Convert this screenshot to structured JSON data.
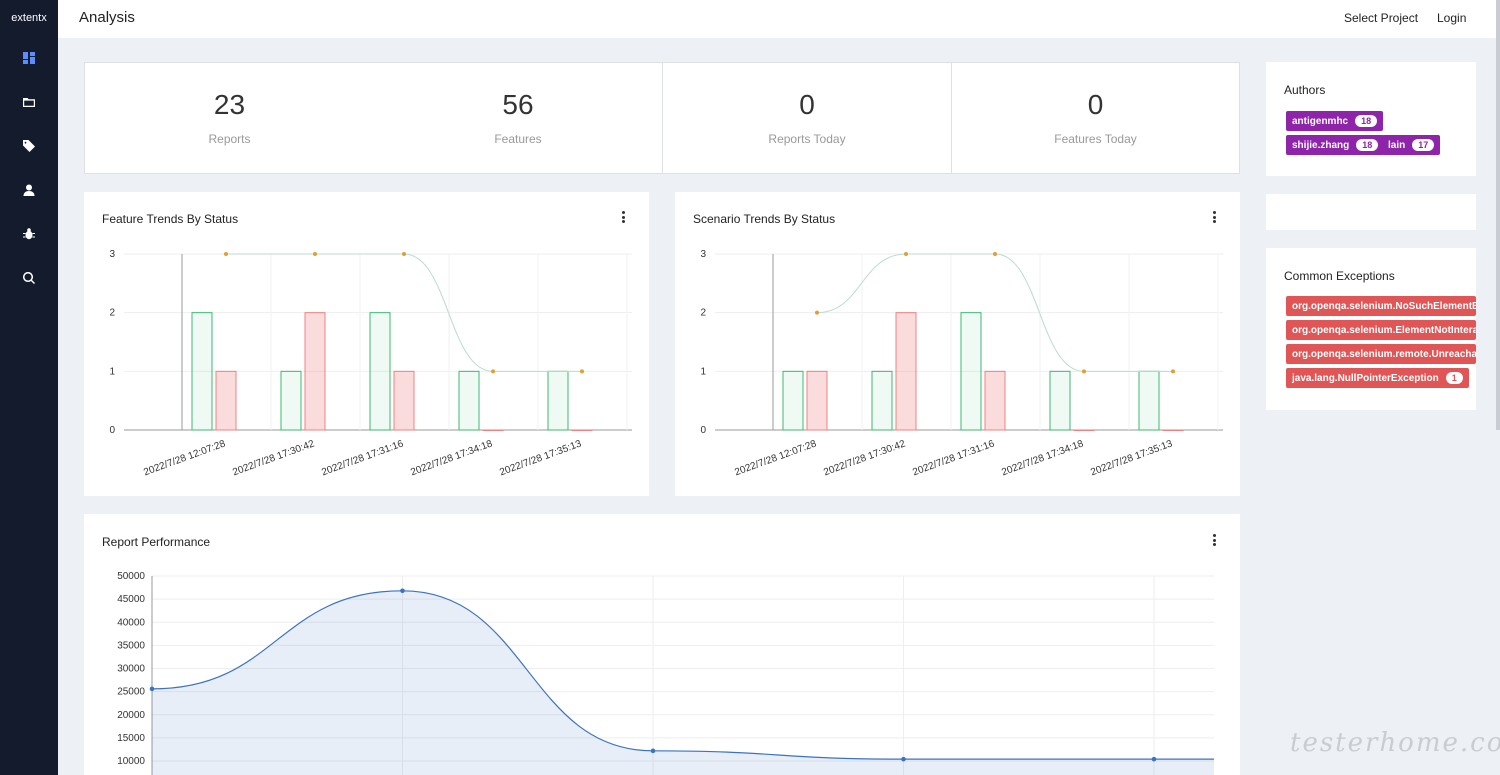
{
  "brand": "extentx",
  "header": {
    "title": "Analysis",
    "select_project": "Select Project",
    "login": "Login"
  },
  "sidebar": {
    "items": [
      {
        "icon": "dashboard-icon",
        "active": true
      },
      {
        "icon": "folder-icon",
        "active": false
      },
      {
        "icon": "tag-icon",
        "active": false
      },
      {
        "icon": "user-icon",
        "active": false
      },
      {
        "icon": "bug-icon",
        "active": false
      },
      {
        "icon": "search-icon",
        "active": false
      }
    ]
  },
  "stats": [
    {
      "value": "23",
      "label": "Reports"
    },
    {
      "value": "56",
      "label": "Features"
    },
    {
      "value": "0",
      "label": "Reports Today"
    },
    {
      "value": "0",
      "label": "Features Today"
    }
  ],
  "authors": {
    "title": "Authors",
    "items": [
      {
        "name": "antigenmhc",
        "count": "18"
      },
      {
        "name": "shijie.zhang",
        "count": "18"
      },
      {
        "name": "lain",
        "count": "17"
      }
    ]
  },
  "exceptions": {
    "title": "Common Exceptions",
    "items": [
      {
        "name": "org.openqa.selenium.NoSuchElementExcepti",
        "count": ""
      },
      {
        "name": "org.openqa.selenium.ElementNotInteractable",
        "count": ""
      },
      {
        "name": "org.openqa.selenium.remote.UnreachableBro",
        "count": ""
      },
      {
        "name": "java.lang.NullPointerException",
        "count": "1"
      }
    ]
  },
  "colors": {
    "pass": "#3cba72",
    "fail": "#f08080",
    "line": "#e0a030",
    "perf": "#3b73c2",
    "sidebar": "#141b2d",
    "author_badge": "#8e24aa",
    "exception_badge": "#e05555"
  },
  "chart_data": [
    {
      "type": "bar",
      "title": "Feature Trends By Status",
      "categories": [
        "2022/7/28 12:07:28",
        "2022/7/28 17:30:42",
        "2022/7/28 17:31:16",
        "2022/7/28 17:34:18",
        "2022/7/28 17:35:13"
      ],
      "series": [
        {
          "values": [
            2,
            1,
            2,
            1,
            1
          ],
          "kind": "bar",
          "color": "#3cba72"
        },
        {
          "values": [
            1,
            2,
            1,
            0,
            0
          ],
          "kind": "bar",
          "color": "#f08080"
        },
        {
          "values": [
            3,
            3,
            3,
            1,
            1
          ],
          "kind": "line",
          "color": "#e0a030"
        }
      ],
      "yticks": [
        0,
        1,
        2,
        3
      ],
      "ylim": [
        0,
        3
      ],
      "grid": true
    },
    {
      "type": "bar",
      "title": "Scenario Trends By Status",
      "categories": [
        "2022/7/28 12:07:28",
        "2022/7/28 17:30:42",
        "2022/7/28 17:31:16",
        "2022/7/28 17:34:18",
        "2022/7/28 17:35:13"
      ],
      "series": [
        {
          "values": [
            1,
            1,
            2,
            1,
            1
          ],
          "kind": "bar",
          "color": "#3cba72"
        },
        {
          "values": [
            1,
            2,
            1,
            0,
            0
          ],
          "kind": "bar",
          "color": "#f08080"
        },
        {
          "values": [
            2,
            3,
            3,
            1,
            1
          ],
          "kind": "line",
          "color": "#e0a030"
        }
      ],
      "yticks": [
        0,
        1,
        2,
        3
      ],
      "ylim": [
        0,
        3
      ],
      "grid": true
    },
    {
      "type": "area",
      "title": "Report Performance",
      "values": [
        25600,
        46800,
        12200,
        10400,
        10400
      ],
      "yticks": [
        10000,
        15000,
        20000,
        25000,
        30000,
        35000,
        40000,
        45000,
        50000
      ],
      "ylim": [
        10000,
        50000
      ],
      "grid": true
    }
  ],
  "watermark": "testerhome.com"
}
